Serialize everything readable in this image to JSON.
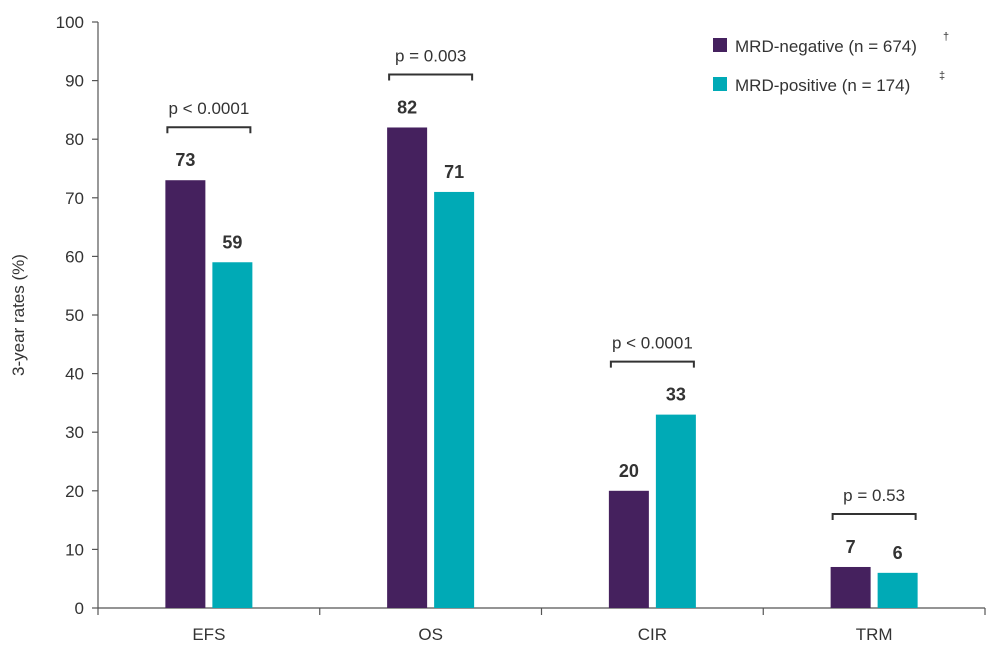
{
  "chart_data": {
    "type": "bar",
    "title": "",
    "xlabel": "",
    "ylabel": "3-year rates (%)",
    "ylim": [
      0,
      100
    ],
    "yticks": [
      0,
      10,
      20,
      30,
      40,
      50,
      60,
      70,
      80,
      90,
      100
    ],
    "categories": [
      "EFS",
      "OS",
      "CIR",
      "TRM"
    ],
    "series": [
      {
        "name": "MRD-negative (n = 674)",
        "marker": "†",
        "color": "#45215e",
        "values": [
          73,
          82,
          20,
          7
        ]
      },
      {
        "name": "MRD-positive (n = 174)",
        "marker": "‡",
        "color": "#00aab6",
        "values": [
          59,
          71,
          33,
          6
        ]
      }
    ],
    "p_values": [
      "p < 0.0001",
      "p = 0.003",
      "p < 0.0001",
      "p = 0.53"
    ],
    "legend_position": "top-right",
    "grid": false
  }
}
